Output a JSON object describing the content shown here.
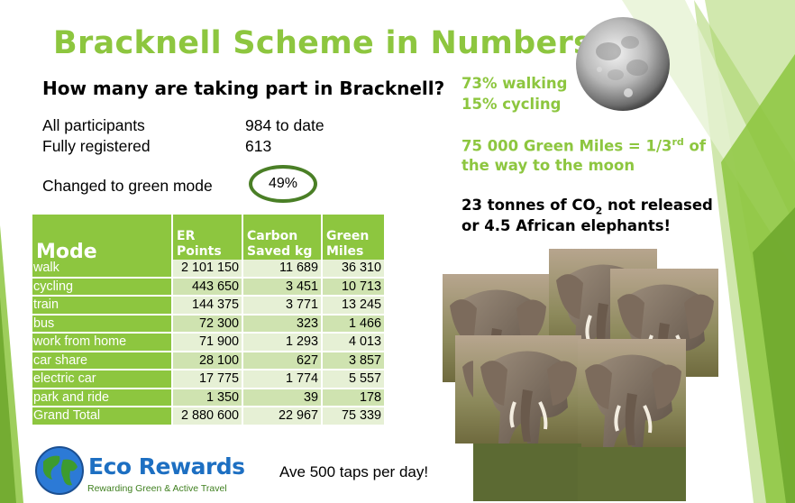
{
  "slide": {
    "title": "Bracknell Scheme in Numbers",
    "question": "How many are taking part in Bracknell?",
    "participants": [
      {
        "label": "All participants",
        "value": "984 to date"
      },
      {
        "label": "Fully registered",
        "value": "613"
      }
    ],
    "changed": {
      "label": "Changed to green mode",
      "value": "49%"
    },
    "facts": {
      "walking": "73% walking",
      "cycling": "15% cycling",
      "green_miles_a": "75 000 Green Miles = 1/3",
      "green_miles_sup": "rd",
      "green_miles_b": " of",
      "green_miles_c": "the way to the moon",
      "co2_a": "23 tonnes of CO",
      "co2_sub": "2",
      "co2_b": " not released",
      "co2_c": "or 4.5 African elephants!"
    },
    "taps": "Ave 500 taps per day!",
    "logo": {
      "title": "Eco Rewards",
      "subtitle": "Rewarding Green & Active Travel"
    },
    "colors": {
      "green": "#8dc63f",
      "dark_green": "#4a7f26",
      "logo_blue": "#1d6fc2"
    }
  },
  "table": {
    "headers": {
      "mode": "Mode",
      "er_1": "ER",
      "er_2": "Points",
      "carbon_1": "Carbon",
      "carbon_2": "Saved kg",
      "green_1": "Green",
      "green_2": "Miles"
    },
    "rows": [
      {
        "mode": "walk",
        "er": "2 101 150",
        "carbon": "11 689",
        "miles": "36 310"
      },
      {
        "mode": "cycling",
        "er": "443 650",
        "carbon": "3 451",
        "miles": "10 713"
      },
      {
        "mode": "train",
        "er": "144 375",
        "carbon": "3 771",
        "miles": "13 245"
      },
      {
        "mode": "bus",
        "er": "72 300",
        "carbon": "323",
        "miles": "1 466"
      },
      {
        "mode": "work from home",
        "er": "71 900",
        "carbon": "1 293",
        "miles": "4 013"
      },
      {
        "mode": "car share",
        "er": "28 100",
        "carbon": "627",
        "miles": "3 857"
      },
      {
        "mode": "electric car",
        "er": "17 775",
        "carbon": "1 774",
        "miles": "5 557"
      },
      {
        "mode": "park and ride",
        "er": "1 350",
        "carbon": "39",
        "miles": "178"
      },
      {
        "mode": "Grand Total",
        "er": "2 880 600",
        "carbon": "22 967",
        "miles": "75 339"
      }
    ]
  }
}
